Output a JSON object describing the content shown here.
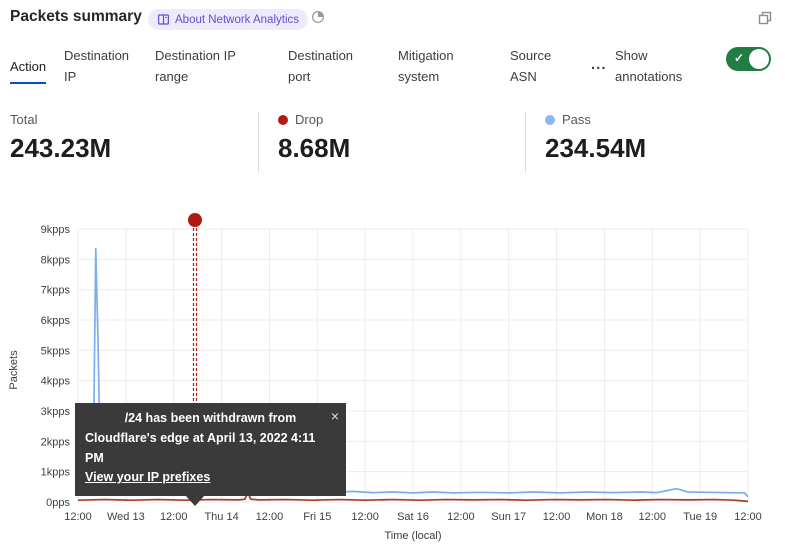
{
  "header": {
    "title": "Packets summary",
    "about_badge_label": "About Network Analytics"
  },
  "icons": {
    "badge": "book-icon",
    "timer": "pie-timer-icon",
    "popout": "popout-icon",
    "check": "✓",
    "close": "×",
    "more": "..."
  },
  "tabs": {
    "items": [
      {
        "label": "Action",
        "active": true
      },
      {
        "label": "Destination IP",
        "active": false
      },
      {
        "label": "Destination IP range",
        "active": false
      },
      {
        "label": "Destination port",
        "active": false
      },
      {
        "label": "Mitigation system",
        "active": false
      },
      {
        "label": "Source ASN",
        "active": false
      }
    ],
    "show_annotations_label": "Show annotations",
    "show_annotations_on": true
  },
  "stats": {
    "items": [
      {
        "label": "Total",
        "value": "243.23M",
        "dot_color": null
      },
      {
        "label": "Drop",
        "value": "8.68M",
        "dot_color": "#b31b17"
      },
      {
        "label": "Pass",
        "value": "234.54M",
        "dot_color": "#8ab6f2"
      }
    ]
  },
  "annotation_tooltip": {
    "line1": "/24 has been withdrawn from",
    "line2": "Cloudflare's edge at April 13, 2022 4:11 PM",
    "link": "View your IP prefixes",
    "close": "×"
  },
  "colors": {
    "accent_blue": "#0051c3",
    "toggle_green": "#227d45",
    "pass_blue": "#7dacef",
    "drop_red": "#a63c2e",
    "annotation_red": "#b11c12",
    "badge_bg": "#eeeafb",
    "badge_text": "#5f51d3",
    "grid": "#ececec"
  },
  "chart_data": {
    "type": "line",
    "xlabel": "Time (local)",
    "ylabel": "Packets",
    "unit": "kpps",
    "ylim": [
      0,
      9
    ],
    "grid": true,
    "y_ticks": [
      "9kpps",
      "8kpps",
      "7kpps",
      "6kpps",
      "5kpps",
      "4kpps",
      "3kpps",
      "2kpps",
      "1kpps",
      "0pps"
    ],
    "x_ticks": [
      "12:00",
      "Wed 13",
      "12:00",
      "Thu 14",
      "12:00",
      "Fri 15",
      "12:00",
      "Sat 16",
      "12:00",
      "Sun 17",
      "12:00",
      "Mon 18",
      "12:00",
      "Tue 19",
      "12:00"
    ],
    "series": [
      {
        "name": "Pass",
        "color": "#7dacef",
        "points": [
          [
            0,
            0.55
          ],
          [
            0.008,
            0.48
          ],
          [
            0.014,
            0.9
          ],
          [
            0.02,
            1.0
          ],
          [
            0.023,
            1.6
          ],
          [
            0.0265,
            8.35
          ],
          [
            0.03,
            5.2
          ],
          [
            0.033,
            1.5
          ],
          [
            0.038,
            0.8
          ],
          [
            0.05,
            0.45
          ],
          [
            0.07,
            0.35
          ],
          [
            0.1,
            0.33
          ],
          [
            0.117,
            0.46
          ],
          [
            0.13,
            0.34
          ],
          [
            0.152,
            0.44
          ],
          [
            0.165,
            0.32
          ],
          [
            0.175,
            0.3
          ],
          [
            0.19,
            0.32
          ],
          [
            0.21,
            0.3
          ],
          [
            0.235,
            0.4
          ],
          [
            0.255,
            0.31
          ],
          [
            0.285,
            0.3
          ],
          [
            0.317,
            0.44
          ],
          [
            0.335,
            0.32
          ],
          [
            0.37,
            0.31
          ],
          [
            0.41,
            0.35
          ],
          [
            0.44,
            0.31
          ],
          [
            0.47,
            0.33
          ],
          [
            0.5,
            0.3
          ],
          [
            0.53,
            0.33
          ],
          [
            0.56,
            0.3
          ],
          [
            0.6,
            0.32
          ],
          [
            0.64,
            0.3
          ],
          [
            0.68,
            0.33
          ],
          [
            0.72,
            0.3
          ],
          [
            0.76,
            0.33
          ],
          [
            0.8,
            0.31
          ],
          [
            0.84,
            0.33
          ],
          [
            0.865,
            0.31
          ],
          [
            0.893,
            0.44
          ],
          [
            0.91,
            0.33
          ],
          [
            0.94,
            0.32
          ],
          [
            0.97,
            0.31
          ],
          [
            0.995,
            0.3
          ],
          [
            1,
            0.17
          ]
        ]
      },
      {
        "name": "Drop",
        "color": "#a63c2e",
        "points": [
          [
            0,
            0.06
          ],
          [
            0.04,
            0.08
          ],
          [
            0.08,
            0.06
          ],
          [
            0.12,
            0.08
          ],
          [
            0.16,
            0.06
          ],
          [
            0.2,
            0.08
          ],
          [
            0.24,
            0.07
          ],
          [
            0.249,
            0.09
          ],
          [
            0.2535,
            0.3
          ],
          [
            0.258,
            0.09
          ],
          [
            0.27,
            0.07
          ],
          [
            0.31,
            0.08
          ],
          [
            0.35,
            0.06
          ],
          [
            0.39,
            0.08
          ],
          [
            0.43,
            0.06
          ],
          [
            0.47,
            0.08
          ],
          [
            0.51,
            0.06
          ],
          [
            0.55,
            0.08
          ],
          [
            0.59,
            0.07
          ],
          [
            0.63,
            0.08
          ],
          [
            0.67,
            0.06
          ],
          [
            0.71,
            0.08
          ],
          [
            0.75,
            0.07
          ],
          [
            0.79,
            0.08
          ],
          [
            0.83,
            0.06
          ],
          [
            0.87,
            0.08
          ],
          [
            0.91,
            0.07
          ],
          [
            0.95,
            0.08
          ],
          [
            0.98,
            0.06
          ],
          [
            1,
            0.02
          ]
        ]
      }
    ],
    "annotation": {
      "x_frac": 0.1746,
      "color": "#b11c12",
      "label": "/24 has been withdrawn from Cloudflare's edge at April 13, 2022 4:11 PM"
    }
  }
}
